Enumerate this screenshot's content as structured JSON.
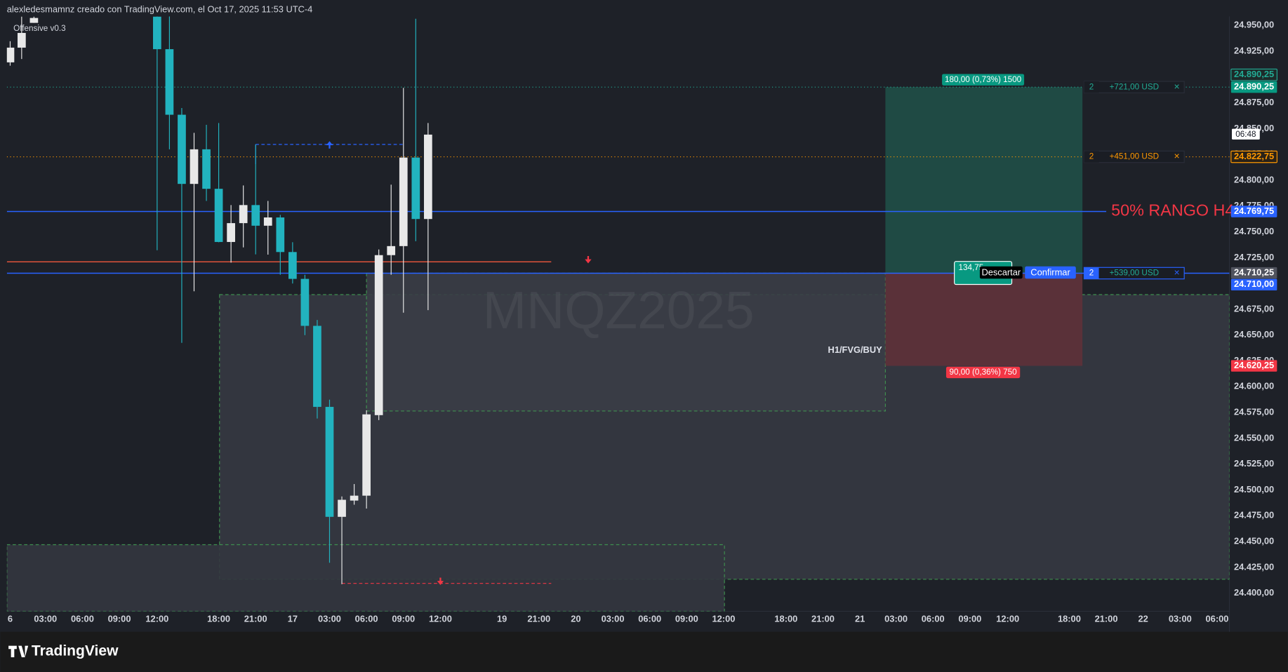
{
  "header": "alexledesmamnz creado con TradingView.com, el Oct 17, 2025 11:53 UTC-4",
  "indicator": "Offensive v0.3",
  "brand": "TradingView",
  "chart_data": {
    "type": "candlestick",
    "symbol_watermark": "MNQZ2025",
    "up_color": "#e8e8e8",
    "down_color": "#22b3bf",
    "ylim": [
      24382.5,
      24958.75
    ],
    "yticks": [
      {
        "value": 24950,
        "label": "24.950,00"
      },
      {
        "value": 24925,
        "label": "24.925,00"
      },
      {
        "value": 24900,
        "label": "24.900,00"
      },
      {
        "value": 24875,
        "label": "24.875,00"
      },
      {
        "value": 24850,
        "label": "24.850,00"
      },
      {
        "value": 24825,
        "label": "24.825,00"
      },
      {
        "value": 24800,
        "label": "24.800,00"
      },
      {
        "value": 24775,
        "label": "24.775,00"
      },
      {
        "value": 24750,
        "label": "24.750,00"
      },
      {
        "value": 24725,
        "label": "24.725,00"
      },
      {
        "value": 24700,
        "label": "24.700,00"
      },
      {
        "value": 24675,
        "label": "24.675,00"
      },
      {
        "value": 24650,
        "label": "24.650,00"
      },
      {
        "value": 24625,
        "label": "24.625,00"
      },
      {
        "value": 24600,
        "label": "24.600,00"
      },
      {
        "value": 24575,
        "label": "24.575,00"
      },
      {
        "value": 24550,
        "label": "24.550,00"
      },
      {
        "value": 24525,
        "label": "24.525,00"
      },
      {
        "value": 24500,
        "label": "24.500,00"
      },
      {
        "value": 24475,
        "label": "24.475,00"
      },
      {
        "value": 24450,
        "label": "24.450,00"
      },
      {
        "value": 24425,
        "label": "24.425,00"
      },
      {
        "value": 24400,
        "label": "24.400,00"
      }
    ],
    "grid": false,
    "time_labels": [
      "6",
      "03:00",
      "06:00",
      "09:00",
      "12:00",
      "18:00",
      "21:00",
      "17",
      "03:00",
      "06:00",
      "09:00",
      "12:00",
      "19",
      "21:00",
      "20",
      "03:00",
      "06:00",
      "09:00",
      "12:00",
      "18:00",
      "21:00",
      "21",
      "03:00",
      "06:00",
      "09:00",
      "12:00",
      "18:00",
      "21:00",
      "22",
      "03:00",
      "06:00"
    ],
    "candles": [
      {
        "open": 24914.25,
        "high": 24934.75,
        "low": 24911,
        "close": 24928.5
      },
      {
        "open": 24928.5,
        "high": 24958.5,
        "low": 24917.5,
        "close": 24942.75
      },
      {
        "open": 24952.5,
        "high": 24958.5,
        "low": 24952.5,
        "close": 24957.25
      },
      {
        "open": 24958.5,
        "high": 24958.75,
        "low": 24732.25,
        "close": 24927
      },
      {
        "open": 24927,
        "high": 24958.75,
        "low": 24830,
        "close": 24863.5
      },
      {
        "open": 24863.5,
        "high": 24870,
        "low": 24642.5,
        "close": 24796.5
      },
      {
        "open": 24796.5,
        "high": 24846,
        "low": 24692.5,
        "close": 24830
      },
      {
        "open": 24830,
        "high": 24853.75,
        "low": 24780,
        "close": 24791.75
      },
      {
        "open": 24791.75,
        "high": 24855.5,
        "low": 24740,
        "close": 24740.25
      },
      {
        "open": 24740.25,
        "high": 24776,
        "low": 24720.25,
        "close": 24758.5
      },
      {
        "open": 24758.5,
        "high": 24795,
        "low": 24735,
        "close": 24776
      },
      {
        "open": 24776,
        "high": 24834.75,
        "low": 24728.25,
        "close": 24756
      },
      {
        "open": 24756,
        "high": 24780,
        "low": 24728,
        "close": 24764
      },
      {
        "open": 24764,
        "high": 24766.5,
        "low": 24708.5,
        "close": 24730.5
      },
      {
        "open": 24730.5,
        "high": 24740,
        "low": 24700,
        "close": 24704.5
      },
      {
        "open": 24704.5,
        "high": 24708.5,
        "low": 24650,
        "close": 24659
      },
      {
        "open": 24659,
        "high": 24664.75,
        "low": 24569.25,
        "close": 24580.5
      },
      {
        "open": 24580.5,
        "high": 24587.5,
        "low": 24429.5,
        "close": 24474
      },
      {
        "open": 24474,
        "high": 24493.75,
        "low": 24408.75,
        "close": 24490.5
      },
      {
        "open": 24489.75,
        "high": 24505.75,
        "low": 24485.75,
        "close": 24494.5
      },
      {
        "open": 24494.5,
        "high": 24577.25,
        "low": 24482,
        "close": 24573.25
      },
      {
        "open": 24572.5,
        "high": 24733,
        "low": 24567.75,
        "close": 24727.5
      },
      {
        "open": 24727.5,
        "high": 24795.75,
        "low": 24708.5,
        "close": 24736.25
      },
      {
        "open": 24736.25,
        "high": 24889.5,
        "low": 24671.75,
        "close": 24822
      },
      {
        "open": 24822,
        "high": 24956.5,
        "low": 24741,
        "close": 24762.5
      },
      {
        "open": 24762.5,
        "high": 24855.5,
        "low": 24674.25,
        "close": 24844.25
      }
    ],
    "zones": [
      {
        "top": 24689.25,
        "bottom": 24413.5,
        "fill": "#353841"
      },
      {
        "top": 24710,
        "bottom": 24576.5,
        "fill": "#3a3d46",
        "label": "H1/FVG/BUY"
      },
      {
        "top": 24447,
        "bottom": 24382.5,
        "fill": "#33363f"
      }
    ],
    "levels": [
      {
        "value": 24890.25,
        "color": "#22ab94",
        "dash": "1 3"
      },
      {
        "value": 24822.75,
        "color": "#ff9800",
        "dash": "1 3"
      },
      {
        "value": 24769.75,
        "color": "#2962ff",
        "dash": "none",
        "label": "50% RANGO H4",
        "label_color": "#f23645"
      },
      {
        "value": 24721,
        "color": "#e0533a",
        "dash": "none"
      },
      {
        "value": 24710,
        "color": "#2962ff",
        "dash": "none"
      }
    ],
    "position": {
      "entry": 24710.25,
      "target": 24890.25,
      "stop": 24620.25,
      "target_label": "180,00 (0,73%) 1500",
      "stop_label": "90,00 (0,36%) 750",
      "target_color": "#1f4a44",
      "stop_color": "#5a3139",
      "entry_label": "134,75",
      "discard": "Descartar",
      "confirm": "Confirmar"
    },
    "orders": [
      {
        "price": 24890.25,
        "qty": 2,
        "pnl": "+721,00 USD",
        "close": "×",
        "color": "#22ab94"
      },
      {
        "price": 24822.75,
        "qty": 2,
        "pnl": "+451,00 USD",
        "close": "×",
        "color": "#ff9800"
      },
      {
        "price": 24710,
        "qty": 2,
        "pnl": "+539,00 USD",
        "close": "×",
        "color": "#2962ff"
      }
    ],
    "countdown": "06:48",
    "price_labels": [
      {
        "value": 24890.25,
        "label": "24.890,25",
        "bg": "#1d2b2a",
        "fg": "#22ab94"
      },
      {
        "value": 24890.25,
        "label": "24.890,25",
        "bg": "#089981",
        "fg": "#ffffff"
      },
      {
        "value": 24822.75,
        "label": "24.822,75",
        "bg": "#2a2218",
        "fg": "#ff9800"
      },
      {
        "value": 24769.75,
        "label": "24.769,75",
        "bg": "#2962ff",
        "fg": "#ffffff"
      },
      {
        "value": 24710.25,
        "label": "24.710,25",
        "bg": "#50535e",
        "fg": "#ffffff"
      },
      {
        "value": 24710,
        "label": "24.710,00",
        "bg": "#2962ff",
        "fg": "#ffffff"
      },
      {
        "value": 24620.25,
        "label": "24.620,25",
        "bg": "#f23645",
        "fg": "#ffffff"
      }
    ]
  }
}
